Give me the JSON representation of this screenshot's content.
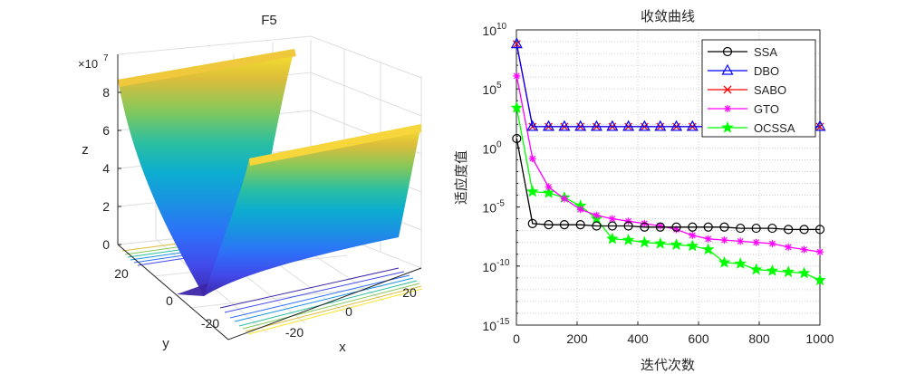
{
  "chart_data": [
    {
      "type": "surface3d",
      "title": "F5",
      "xlabel": "x",
      "ylabel": "y",
      "zlabel": "z",
      "z_exponent_label": "×10",
      "z_exponent": "7",
      "x_ticks": [
        "-20",
        "0",
        "20"
      ],
      "y_ticks": [
        "-20",
        "0",
        "20"
      ],
      "z_ticks": [
        "0",
        "2",
        "4",
        "6",
        "8"
      ],
      "xlim": [
        -30,
        30
      ],
      "ylim": [
        -30,
        30
      ],
      "zlim": [
        0,
        90000000
      ],
      "z_peak": 81000000,
      "colormap": "parula"
    },
    {
      "type": "line",
      "yscale": "log",
      "title": "收敛曲线",
      "xlabel": "迭代次数",
      "ylabel": "适应度值",
      "xlim": [
        0,
        1000
      ],
      "ylim_exp": [
        -15,
        10
      ],
      "x_ticks": [
        "0",
        "200",
        "400",
        "600",
        "800",
        "1000"
      ],
      "y_ticks": [
        {
          "base": "10",
          "exp": "10",
          "value": 10
        },
        {
          "base": "10",
          "exp": "5",
          "value": 5
        },
        {
          "base": "10",
          "exp": "0",
          "value": 0
        },
        {
          "base": "10",
          "exp": "-5",
          "value": -5
        },
        {
          "base": "10",
          "exp": "-10",
          "value": -10
        },
        {
          "base": "10",
          "exp": "-15",
          "value": -15
        }
      ],
      "grid": true,
      "legend_position": "top-right",
      "x": [
        1,
        53,
        106,
        158,
        211,
        264,
        316,
        369,
        422,
        474,
        527,
        580,
        632,
        685,
        738,
        790,
        843,
        896,
        948,
        1000
      ],
      "series": [
        {
          "name": "SSA",
          "color": "#000000",
          "marker": "circle",
          "log10_values": [
            0.8,
            -6.4,
            -6.5,
            -6.5,
            -6.5,
            -6.6,
            -6.6,
            -6.6,
            -6.7,
            -6.7,
            -6.7,
            -6.7,
            -6.7,
            -6.7,
            -6.8,
            -6.8,
            -6.8,
            -6.9,
            -6.9,
            -6.9
          ]
        },
        {
          "name": "DBO",
          "color": "#0000ff",
          "marker": "triangle",
          "log10_values": [
            8.8,
            1.8,
            1.8,
            1.8,
            1.8,
            1.8,
            1.8,
            1.8,
            1.8,
            1.8,
            1.8,
            1.8,
            1.8,
            1.8,
            1.8,
            1.8,
            1.8,
            1.8,
            1.8,
            1.8
          ]
        },
        {
          "name": "SABO",
          "color": "#ff0000",
          "marker": "x",
          "log10_values": [
            8.8,
            1.8,
            1.8,
            1.8,
            1.8,
            1.8,
            1.8,
            1.8,
            1.8,
            1.8,
            1.8,
            1.8,
            1.8,
            1.8,
            1.8,
            1.8,
            1.8,
            1.8,
            1.8,
            1.8
          ]
        },
        {
          "name": "GTO",
          "color": "#ff00ff",
          "marker": "asterisk",
          "log10_values": [
            6.1,
            -0.9,
            -3.3,
            -4.3,
            -5.2,
            -5.7,
            -6.0,
            -6.2,
            -6.4,
            -6.6,
            -6.9,
            -7.4,
            -7.7,
            -7.8,
            -7.9,
            -8.0,
            -8.1,
            -8.4,
            -8.6,
            -8.8
          ]
        },
        {
          "name": "OCSSA",
          "color": "#00ff00",
          "marker": "pentagram",
          "log10_values": [
            3.4,
            -3.7,
            -3.8,
            -4.2,
            -4.9,
            -6.0,
            -7.7,
            -7.8,
            -8.0,
            -8.1,
            -8.2,
            -8.3,
            -8.6,
            -9.7,
            -9.8,
            -10.3,
            -10.4,
            -10.5,
            -10.6,
            -11.2
          ]
        }
      ]
    }
  ]
}
